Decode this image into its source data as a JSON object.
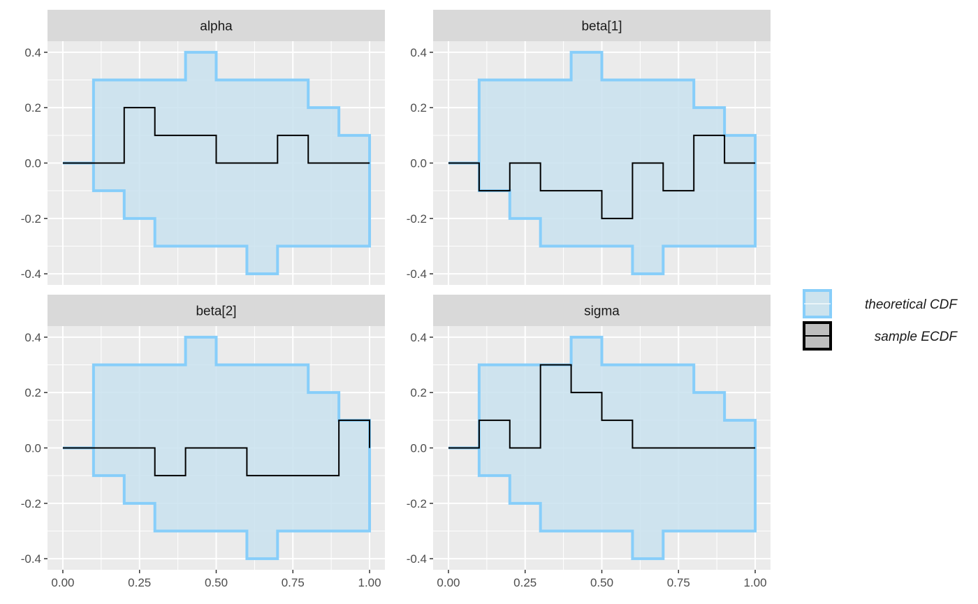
{
  "chart_data": {
    "type": "line",
    "subtype": "facetted ECDF difference step plot",
    "title": "",
    "xlabel": "",
    "ylabel": "",
    "xlim": [
      0,
      1
    ],
    "ylim": [
      -0.4,
      0.4
    ],
    "x_ticks": [
      0,
      0.25,
      0.5,
      0.75,
      1
    ],
    "x_tick_labels": [
      "0.00",
      "0.25",
      "0.50",
      "0.75",
      "1.00"
    ],
    "y_ticks": [
      0.4,
      0.2,
      0,
      -0.2,
      -0.4
    ],
    "y_tick_labels": [
      "0.4",
      "0.2",
      "0.0",
      "-0.2",
      "-0.4"
    ],
    "grid": true,
    "legend": {
      "placement": "right",
      "entries": [
        {
          "label": "theoretical CDF",
          "color": "#87cefa",
          "fill": "#cce3ee"
        },
        {
          "label": "sample ECDF",
          "color": "#000000",
          "fill": "#bebebe"
        }
      ]
    },
    "colors": {
      "panel_background": "#ebebeb",
      "strip_background": "#d9d9d9",
      "band_fill": "#c9e2ee",
      "band_line": "#87cefa",
      "ecdf_line": "#000000"
    },
    "band_x": [
      0,
      0.1,
      0.2,
      0.3,
      0.4,
      0.5,
      0.6,
      0.7,
      0.8,
      0.9,
      1.0
    ],
    "band_upper": [
      0,
      0.3,
      0.3,
      0.3,
      0.4,
      0.3,
      0.3,
      0.3,
      0.2,
      0.1,
      0.1
    ],
    "band_lower": [
      0,
      -0.1,
      -0.2,
      -0.3,
      -0.3,
      -0.3,
      -0.4,
      -0.3,
      -0.3,
      -0.3,
      -0.3
    ],
    "panels": [
      {
        "name": "alpha",
        "x": [
          0,
          0.1,
          0.2,
          0.3,
          0.4,
          0.5,
          0.6,
          0.7,
          0.8,
          0.9,
          1.0
        ],
        "values": [
          0,
          0,
          0.2,
          0.1,
          0.1,
          0,
          0,
          0.1,
          0,
          0,
          0
        ]
      },
      {
        "name": "beta[1]",
        "x": [
          0,
          0.1,
          0.2,
          0.3,
          0.4,
          0.5,
          0.6,
          0.7,
          0.8,
          0.9,
          1.0
        ],
        "values": [
          0,
          -0.1,
          0,
          -0.1,
          -0.1,
          -0.2,
          0,
          -0.1,
          0.1,
          0,
          0
        ]
      },
      {
        "name": "beta[2]",
        "x": [
          0,
          0.1,
          0.2,
          0.3,
          0.4,
          0.5,
          0.6,
          0.7,
          0.8,
          0.9,
          1.0
        ],
        "values": [
          0,
          0,
          0,
          -0.1,
          0,
          0,
          -0.1,
          -0.1,
          -0.1,
          0.1,
          0
        ]
      },
      {
        "name": "sigma",
        "x": [
          0,
          0.1,
          0.2,
          0.3,
          0.4,
          0.5,
          0.6,
          0.7,
          0.8,
          0.9,
          1.0
        ],
        "values": [
          0,
          0.1,
          0,
          0.3,
          0.2,
          0.1,
          0,
          0,
          0,
          0,
          0
        ]
      }
    ]
  }
}
